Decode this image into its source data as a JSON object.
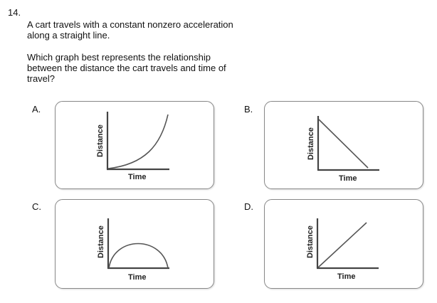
{
  "question": {
    "number": "14.",
    "stem": "A cart travels with a constant nonzero acceleration along a straight line.",
    "prompt": "Which graph best represents the relationship between the distance the cart travels and time of travel?"
  },
  "options": [
    {
      "label": "A.",
      "shape": "curve-up",
      "ylabel": "Distance",
      "xlabel": "Time"
    },
    {
      "label": "B.",
      "shape": "line-down",
      "ylabel": "Distance",
      "xlabel": "Time"
    },
    {
      "label": "C.",
      "shape": "arch",
      "ylabel": "Distance",
      "xlabel": "Time"
    },
    {
      "label": "D.",
      "shape": "line-up",
      "ylabel": "Distance",
      "xlabel": "Time"
    }
  ]
}
